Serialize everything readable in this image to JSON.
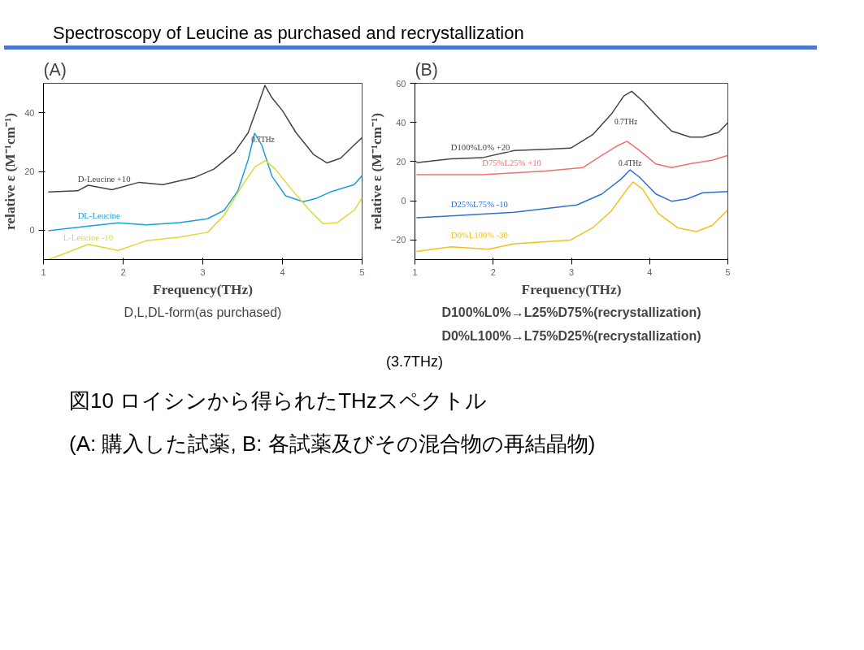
{
  "chart_data": [
    {
      "type": "line",
      "title": "(A)",
      "xlabel": "Frequency(THz)",
      "ylabel": "relative ε (M⁻¹cm⁻¹)",
      "xlim": [
        1,
        5
      ],
      "ylim": [
        -10,
        50
      ],
      "xticks": [
        1,
        2,
        3,
        4,
        5
      ],
      "yticks": [
        0,
        20,
        40
      ],
      "grid": false,
      "series": [
        {
          "name": "D-Leucine +10",
          "color": "#444444",
          "x": [
            1.06,
            1.43,
            1.56,
            1.86,
            2.2,
            2.5,
            2.89,
            3.14,
            3.4,
            3.57,
            3.7,
            3.78,
            3.87,
            4.0,
            4.17,
            4.39,
            4.56,
            4.73,
            4.9,
            5.0
          ],
          "values": [
            13,
            13.4,
            15.3,
            13.8,
            16.3,
            15.5,
            17.9,
            20.8,
            26.6,
            33.2,
            43,
            49.3,
            45,
            40.7,
            33.2,
            25.8,
            22.9,
            24.5,
            29,
            31.5
          ]
        },
        {
          "name": "DL-Leucine",
          "color": "#1aa0d8",
          "x": [
            1.06,
            1.43,
            1.94,
            2.29,
            2.71,
            3.06,
            3.27,
            3.44,
            3.57,
            3.65,
            3.74,
            3.87,
            4.04,
            4.26,
            4.43,
            4.6,
            4.9,
            5.0
          ],
          "values": [
            -0.2,
            1,
            2.5,
            1.8,
            2.6,
            3.9,
            6.8,
            13.4,
            24,
            33,
            29,
            18.3,
            11.7,
            9.7,
            10.9,
            13,
            15.5,
            18.6
          ]
        },
        {
          "name": "L-Leucine -10",
          "color": "#e0d830",
          "x": [
            1.06,
            1.26,
            1.56,
            1.94,
            2.29,
            2.71,
            3.06,
            3.27,
            3.49,
            3.66,
            3.79,
            3.91,
            4.13,
            4.34,
            4.51,
            4.69,
            4.9,
            5.0
          ],
          "values": [
            -10,
            -8,
            -4.8,
            -6.9,
            -3.6,
            -2.3,
            -0.7,
            5.1,
            15,
            21.7,
            23.7,
            20.8,
            13.4,
            6.8,
            2.2,
            2.6,
            6.8,
            11
          ]
        }
      ],
      "annotations": [
        {
          "text": "0.7THz",
          "x": 3.57,
          "y": 33.2
        },
        "D,L,DL-form(as purchased)"
      ]
    },
    {
      "type": "line",
      "title": "(B)",
      "xlabel": "Frequency(THz)",
      "ylabel": "relative ε (M⁻¹cm⁻¹)",
      "xlim": [
        1,
        5
      ],
      "ylim": [
        -30,
        60
      ],
      "xticks": [
        1,
        2,
        3,
        4,
        5
      ],
      "yticks": [
        -20,
        0,
        20,
        40,
        60
      ],
      "grid": false,
      "series": [
        {
          "name": "D100%L0% +20",
          "color": "#444444",
          "x": [
            1.02,
            1.46,
            1.86,
            2.27,
            2.67,
            2.99,
            3.27,
            3.51,
            3.67,
            3.77,
            3.91,
            4.08,
            4.28,
            4.52,
            4.68,
            4.88,
            5.0
          ],
          "values": [
            19.5,
            21.4,
            22,
            25.7,
            26.3,
            26.9,
            33.7,
            44.2,
            53.5,
            55.9,
            51,
            43.6,
            35.6,
            32.5,
            32.5,
            34.9,
            39.9
          ]
        },
        {
          "name": "D75%L25% +10",
          "color": "#f07070",
          "x": [
            1.02,
            1.86,
            2.67,
            3.15,
            3.39,
            3.59,
            3.71,
            3.87,
            4.08,
            4.28,
            4.52,
            4.8,
            5.0
          ],
          "values": [
            13.3,
            13.3,
            15.2,
            17,
            23.2,
            28.1,
            30.4,
            25.7,
            18.8,
            17,
            18.9,
            20.7,
            23.2
          ]
        },
        {
          "name": "D25%L75% -10",
          "color": "#3070d0",
          "x": [
            1.02,
            1.46,
            2.27,
            3.07,
            3.39,
            3.63,
            3.75,
            3.87,
            4.08,
            4.28,
            4.48,
            4.68,
            5.0
          ],
          "values": [
            -8.6,
            -7.7,
            -5.8,
            -2.1,
            3.5,
            10.9,
            15.8,
            12.1,
            3.5,
            -0.2,
            1,
            4.1,
            4.7
          ]
        },
        {
          "name": "D0%L100% -30",
          "color": "#f0c020",
          "x": [
            1.02,
            1.46,
            1.94,
            2.27,
            2.99,
            3.27,
            3.51,
            3.71,
            3.79,
            3.91,
            4.11,
            4.36,
            4.6,
            4.8,
            5.0
          ],
          "values": [
            -25.9,
            -23.5,
            -24.7,
            -21.9,
            -20,
            -13.8,
            -5.2,
            5.9,
            9.6,
            5.9,
            -6.4,
            -13.8,
            -15.7,
            -12.6,
            -4.6
          ]
        }
      ],
      "annotations": [
        {
          "text": "0.7THz",
          "x": 3.51,
          "y": 44.2
        },
        {
          "text": "0.4THz",
          "x": 3.75,
          "y": 15.8
        },
        "D100%L0%→L25%D75%(recrystallization)",
        "D0%L100%→L75%D25%(recrystallization)"
      ]
    },
    {
      "type": "other",
      "title": "Spectroscopy of Leucine as purchased and recrystallization",
      "annotations": [
        "(3.7THz)",
        "図10 ロイシンから得られたTHzスペクトル",
        "(A: 購入した試薬, B: 各試薬及びその混合物の再結晶物)"
      ]
    }
  ]
}
